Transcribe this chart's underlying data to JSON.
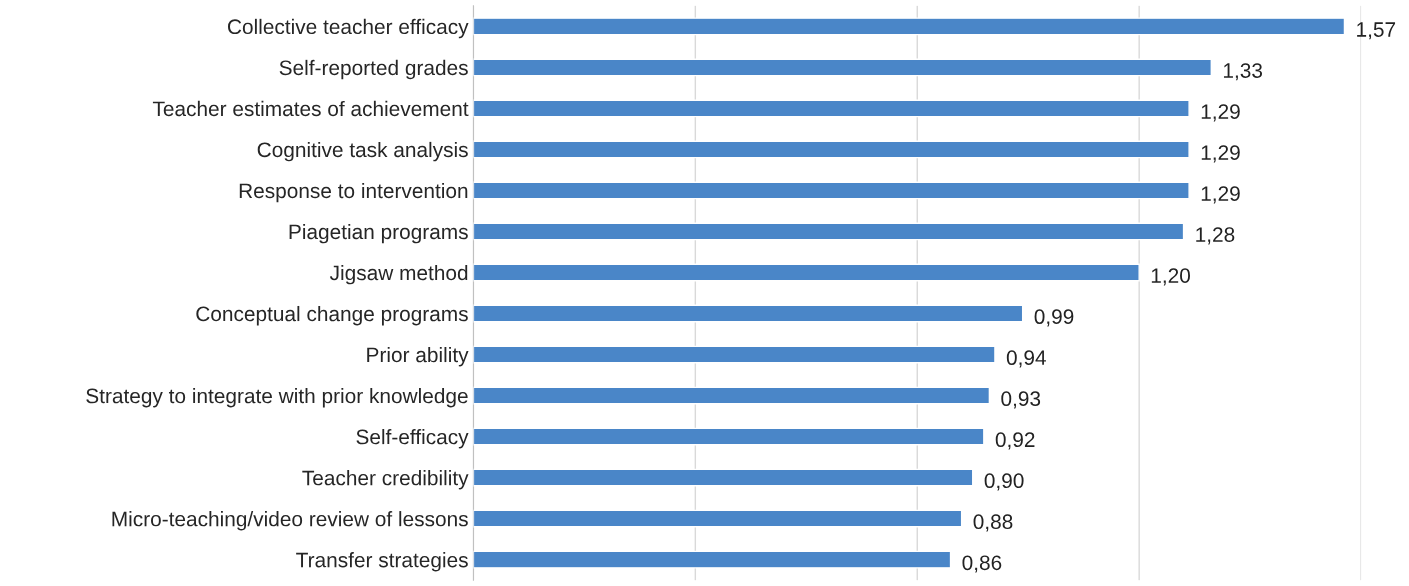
{
  "chart_data": {
    "type": "bar",
    "orientation": "horizontal",
    "categories": [
      "Collective teacher efficacy",
      "Self-reported grades",
      "Teacher estimates of achievement",
      "Cognitive task analysis",
      "Response to intervention",
      "Piagetian programs",
      "Jigsaw method",
      "Conceptual change programs",
      "Prior ability",
      "Strategy to integrate with prior knowledge",
      "Self-efficacy",
      "Teacher credibility",
      "Micro-teaching/video review of lessons",
      "Transfer strategies"
    ],
    "values": [
      1.57,
      1.33,
      1.29,
      1.29,
      1.29,
      1.28,
      1.2,
      0.99,
      0.94,
      0.93,
      0.92,
      0.9,
      0.88,
      0.86
    ],
    "value_labels": [
      "1,57",
      "1,33",
      "1,29",
      "1,29",
      "1,29",
      "1,28",
      "1,20",
      "0,99",
      "0,94",
      "0,93",
      "0,92",
      "0,90",
      "0,88",
      "0,86"
    ],
    "color": "#4a86c8",
    "xlim": [
      0,
      1.6
    ],
    "xticks": [
      {
        "value": 0,
        "label": null
      },
      {
        "value": 0.4,
        "label": null
      },
      {
        "value": 0.8,
        "label": null
      },
      {
        "value": 1.2,
        "label": null
      },
      {
        "value": 1.6,
        "label": null
      }
    ],
    "grid": "x",
    "tick_labels": "y"
  }
}
